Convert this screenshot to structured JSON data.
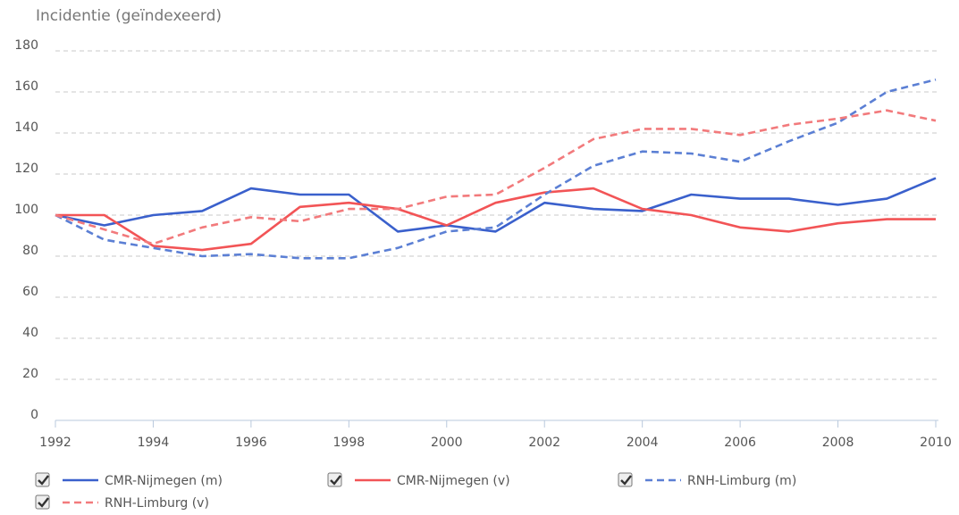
{
  "chart_data": {
    "type": "line",
    "y_label": "Incidentie (geïndexeerd)",
    "x": [
      1992,
      1993,
      1994,
      1995,
      1996,
      1997,
      1998,
      1999,
      2000,
      2001,
      2002,
      2003,
      2004,
      2005,
      2006,
      2007,
      2008,
      2009,
      2010
    ],
    "xlim": [
      1992,
      2010
    ],
    "xticks": [
      1992,
      1994,
      1996,
      1998,
      2000,
      2002,
      2004,
      2006,
      2008,
      2010
    ],
    "ylim": [
      0,
      180
    ],
    "yticks": [
      0,
      20,
      40,
      60,
      80,
      100,
      120,
      140,
      160,
      180
    ],
    "grid": true,
    "series": [
      {
        "name": "CMR-Nijmegen (m)",
        "color": "#3a60cc",
        "dashed": false,
        "values": [
          100,
          95,
          100,
          102,
          113,
          110,
          110,
          92,
          95,
          92,
          106,
          103,
          102,
          110,
          108,
          108,
          105,
          108,
          118
        ]
      },
      {
        "name": "CMR-Nijmegen (v)",
        "color": "#f25456",
        "dashed": false,
        "values": [
          100,
          100,
          85,
          83,
          86,
          104,
          106,
          103,
          95,
          106,
          111,
          113,
          103,
          100,
          94,
          92,
          96,
          98,
          98
        ]
      },
      {
        "name": "RNH-Limburg (m)",
        "color": "#5b7fd4",
        "dashed": true,
        "values": [
          100,
          88,
          84,
          80,
          81,
          79,
          79,
          84,
          92,
          94,
          110,
          124,
          131,
          130,
          126,
          136,
          145,
          160,
          166
        ]
      },
      {
        "name": "RNH-Limburg (v)",
        "color": "#f27a7c",
        "dashed": true,
        "values": [
          100,
          93,
          86,
          94,
          99,
          97,
          103,
          103,
          109,
          110,
          123,
          137,
          142,
          142,
          139,
          144,
          147,
          151,
          146
        ]
      }
    ]
  }
}
